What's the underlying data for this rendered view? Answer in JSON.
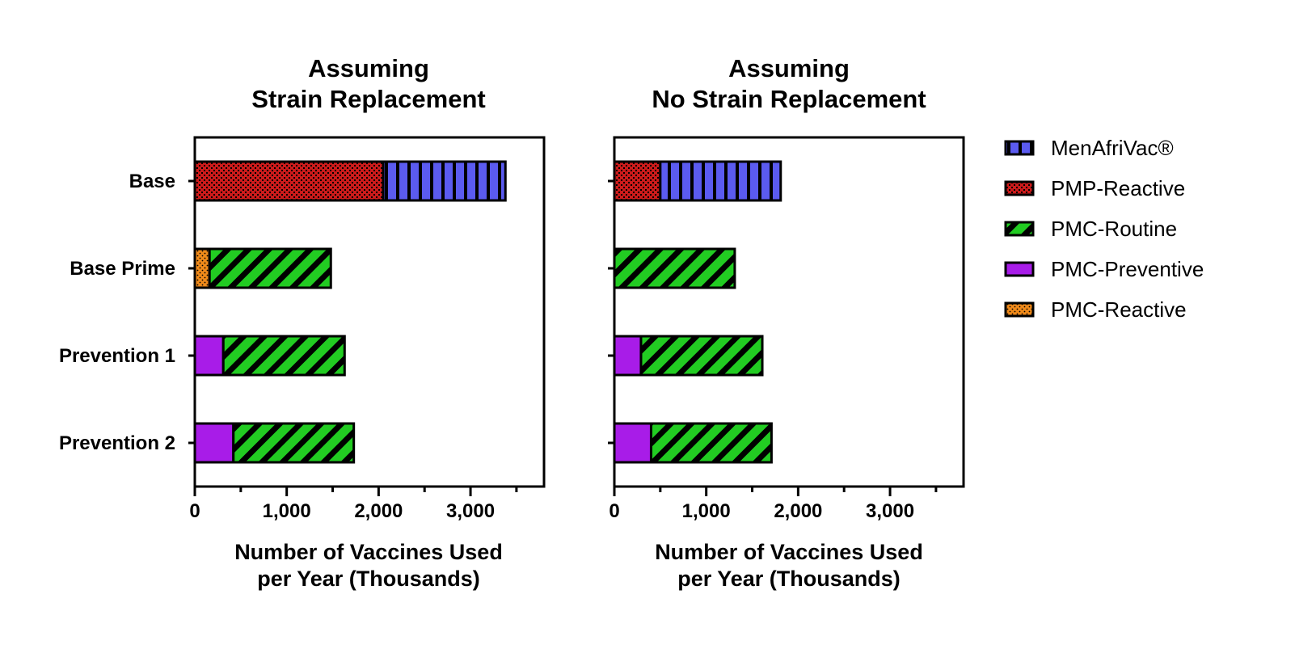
{
  "colors": {
    "MenAfriVac®": "#5b5bf0",
    "PMP-Reactive": "#cc1b1b",
    "PMC-Routine": "#22cc22",
    "PMC-Preventive": "#a81ce8",
    "PMC-Reactive": "#f08a1a"
  },
  "chart_data": [
    {
      "type": "bar",
      "orientation": "horizontal",
      "stacked": true,
      "title": "Assuming\nStrain Replacement",
      "title_lines": [
        "Assuming",
        "Strain Replacement"
      ],
      "xlabel_lines": [
        "Number of Vaccines Used",
        "per Year (Thousands)"
      ],
      "xlim": [
        0,
        3800
      ],
      "xticks": [
        0,
        1000,
        2000,
        3000
      ],
      "xtick_labels": [
        "0",
        "1,000",
        "2,000",
        "3,000"
      ],
      "categories": [
        "Base",
        "Base Prime",
        "Prevention 1",
        "Prevention 2"
      ],
      "series": [
        {
          "name": "PMC-Reactive",
          "values": [
            0,
            160,
            0,
            0
          ]
        },
        {
          "name": "PMC-Preventive",
          "values": [
            0,
            0,
            310,
            420
          ]
        },
        {
          "name": "PMP-Reactive",
          "values": [
            2050,
            0,
            0,
            0
          ]
        },
        {
          "name": "PMC-Routine",
          "values": [
            0,
            1320,
            1320,
            1310
          ]
        },
        {
          "name": "MenAfriVac®",
          "values": [
            1330,
            0,
            0,
            0
          ]
        }
      ],
      "grid": false
    },
    {
      "type": "bar",
      "orientation": "horizontal",
      "stacked": true,
      "title": "Assuming\nNo Strain Replacement",
      "title_lines": [
        "Assuming",
        "No Strain Replacement"
      ],
      "xlabel_lines": [
        "Number of Vaccines Used",
        "per Year (Thousands)"
      ],
      "xlim": [
        0,
        3800
      ],
      "xticks": [
        0,
        1000,
        2000,
        3000
      ],
      "xtick_labels": [
        "0",
        "1,000",
        "2,000",
        "3,000"
      ],
      "categories": [
        "Base",
        "Base Prime",
        "Prevention 1",
        "Prevention 2"
      ],
      "series": [
        {
          "name": "PMC-Reactive",
          "values": [
            0,
            0,
            0,
            0
          ]
        },
        {
          "name": "PMC-Preventive",
          "values": [
            0,
            0,
            290,
            400
          ]
        },
        {
          "name": "PMP-Reactive",
          "values": [
            500,
            0,
            0,
            0
          ]
        },
        {
          "name": "PMC-Routine",
          "values": [
            0,
            1310,
            1320,
            1310
          ]
        },
        {
          "name": "MenAfriVac®",
          "values": [
            1310,
            0,
            0,
            0
          ]
        }
      ],
      "grid": false
    }
  ],
  "legend": {
    "position": "right",
    "items": [
      "MenAfriVac®",
      "PMP-Reactive",
      "PMC-Routine",
      "PMC-Preventive",
      "PMC-Reactive"
    ]
  }
}
